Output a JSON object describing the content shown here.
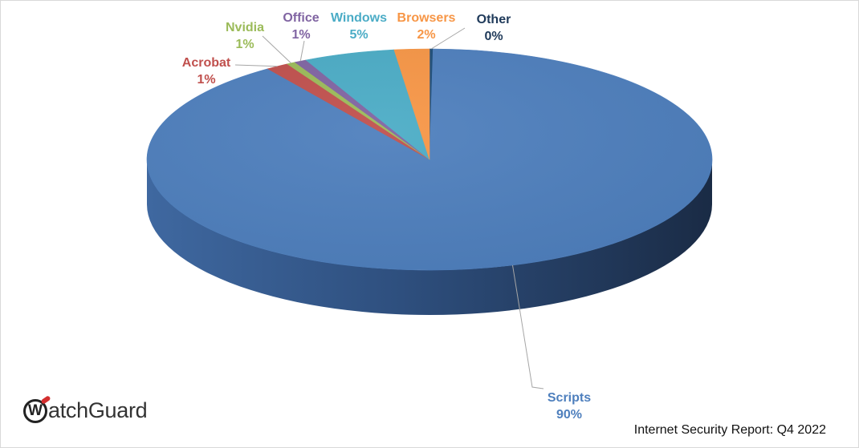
{
  "chart_data": {
    "type": "pie",
    "title": "",
    "style": "3d",
    "slices": [
      {
        "label": "Other",
        "pct_text": "0%",
        "value": 0.2,
        "color": "#1f4e79"
      },
      {
        "label": "Scripts",
        "pct_text": "90%",
        "value": 90.1,
        "color": "#4e7fbd"
      },
      {
        "label": "Acrobat",
        "pct_text": "1%",
        "value": 1.3,
        "color": "#c0504d"
      },
      {
        "label": "Nvidia",
        "pct_text": "1%",
        "value": 0.5,
        "color": "#9bbb59"
      },
      {
        "label": "Office",
        "pct_text": "1%",
        "value": 0.7,
        "color": "#8064a2"
      },
      {
        "label": "Windows",
        "pct_text": "5%",
        "value": 5.2,
        "color": "#4bacc6"
      },
      {
        "label": "Browsers",
        "pct_text": "2%",
        "value": 2.0,
        "color": "#f79646"
      }
    ]
  },
  "brand": {
    "mark": "W",
    "rest": "atchGuard"
  },
  "footer": {
    "report": "Internet Security Report: Q4 2022"
  }
}
